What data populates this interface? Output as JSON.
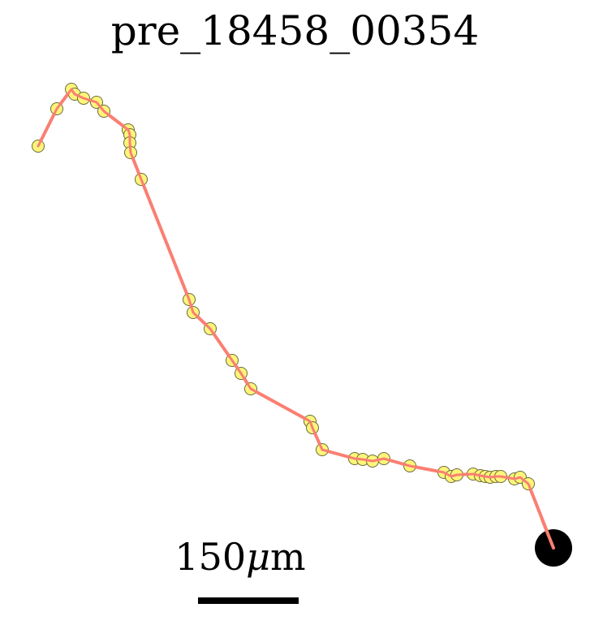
{
  "title": "pre_18458_00354",
  "scale_bar": {
    "value": "150",
    "unit_symbol": "μ",
    "unit_suffix": "m"
  },
  "colors": {
    "path": "#fa7f72",
    "marker_fill": "#fdf57a",
    "marker_stroke": "#6b6b3a",
    "end_marker": "#000000",
    "scale_bar": "#000000"
  }
}
